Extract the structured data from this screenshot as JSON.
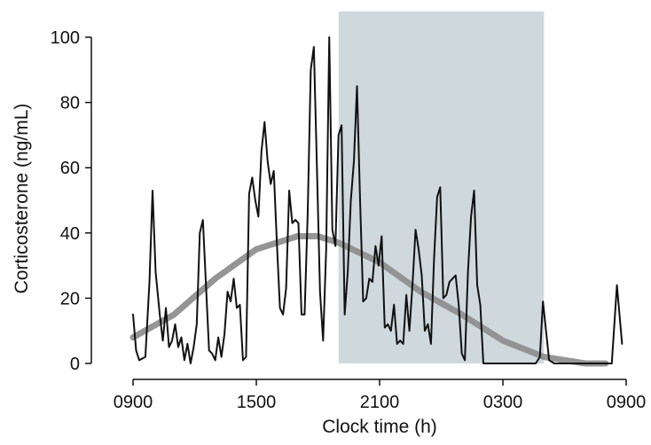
{
  "chart_data": {
    "type": "line",
    "xlabel": "Clock time (h)",
    "ylabel": "Corticosterone (ng/mL)",
    "xlim": [
      0,
      24
    ],
    "ylim": [
      0,
      100
    ],
    "x_ticks": [
      {
        "value": 0,
        "label": "0900"
      },
      {
        "value": 6,
        "label": "1500"
      },
      {
        "value": 12,
        "label": "2100"
      },
      {
        "value": 18,
        "label": "0300"
      },
      {
        "value": 24,
        "label": "0900"
      }
    ],
    "y_ticks": [
      0,
      20,
      40,
      60,
      80,
      100
    ],
    "dark_period": {
      "start": 10,
      "end": 20
    },
    "colors": {
      "dark_period": "#cfd9dd",
      "raw_series": "#111111",
      "fitted_curve": "#8f8f8f",
      "axis": "#111111"
    },
    "series": [
      {
        "points": [
          [
            0.0,
            15
          ],
          [
            0.15,
            4
          ],
          [
            0.3,
            1
          ],
          [
            0.6,
            2
          ],
          [
            0.8,
            25
          ],
          [
            0.95,
            53
          ],
          [
            1.1,
            28
          ],
          [
            1.3,
            15
          ],
          [
            1.45,
            7
          ],
          [
            1.6,
            17
          ],
          [
            1.75,
            5
          ],
          [
            1.9,
            7
          ],
          [
            2.05,
            12
          ],
          [
            2.2,
            5
          ],
          [
            2.35,
            8
          ],
          [
            2.5,
            1
          ],
          [
            2.65,
            6
          ],
          [
            2.8,
            0
          ],
          [
            2.95,
            5
          ],
          [
            3.1,
            12
          ],
          [
            3.25,
            40
          ],
          [
            3.4,
            44
          ],
          [
            3.55,
            24
          ],
          [
            3.7,
            4
          ],
          [
            3.85,
            3
          ],
          [
            4.0,
            1
          ],
          [
            4.15,
            8
          ],
          [
            4.3,
            2
          ],
          [
            4.45,
            9
          ],
          [
            4.6,
            22
          ],
          [
            4.75,
            19
          ],
          [
            4.9,
            26
          ],
          [
            5.05,
            17
          ],
          [
            5.2,
            18
          ],
          [
            5.35,
            1
          ],
          [
            5.5,
            2
          ],
          [
            5.65,
            52
          ],
          [
            5.8,
            57
          ],
          [
            5.95,
            50
          ],
          [
            6.1,
            45
          ],
          [
            6.25,
            65
          ],
          [
            6.4,
            74
          ],
          [
            6.55,
            62
          ],
          [
            6.7,
            55
          ],
          [
            6.85,
            59
          ],
          [
            7.0,
            37
          ],
          [
            7.15,
            17
          ],
          [
            7.3,
            15
          ],
          [
            7.45,
            23
          ],
          [
            7.6,
            53
          ],
          [
            7.75,
            43
          ],
          [
            7.9,
            44
          ],
          [
            8.05,
            43
          ],
          [
            8.2,
            15
          ],
          [
            8.35,
            15
          ],
          [
            8.5,
            46
          ],
          [
            8.65,
            90
          ],
          [
            8.8,
            97
          ],
          [
            8.95,
            60
          ],
          [
            9.1,
            22
          ],
          [
            9.25,
            7
          ],
          [
            9.4,
            35
          ],
          [
            9.55,
            100
          ],
          [
            9.7,
            41
          ],
          [
            9.85,
            36
          ],
          [
            10.0,
            70
          ],
          [
            10.15,
            73
          ],
          [
            10.3,
            15
          ],
          [
            10.45,
            28
          ],
          [
            10.6,
            50
          ],
          [
            10.75,
            62
          ],
          [
            10.9,
            85
          ],
          [
            11.05,
            50
          ],
          [
            11.2,
            19
          ],
          [
            11.35,
            20
          ],
          [
            11.5,
            26
          ],
          [
            11.65,
            25
          ],
          [
            11.8,
            36
          ],
          [
            11.95,
            30
          ],
          [
            12.1,
            39
          ],
          [
            12.25,
            11
          ],
          [
            12.4,
            12
          ],
          [
            12.55,
            10
          ],
          [
            12.7,
            18
          ],
          [
            12.85,
            6
          ],
          [
            13.0,
            7
          ],
          [
            13.15,
            6
          ],
          [
            13.3,
            21
          ],
          [
            13.45,
            10
          ],
          [
            13.6,
            24
          ],
          [
            13.75,
            41
          ],
          [
            13.9,
            35
          ],
          [
            14.05,
            27
          ],
          [
            14.2,
            10
          ],
          [
            14.35,
            12
          ],
          [
            14.5,
            6
          ],
          [
            14.65,
            32
          ],
          [
            14.8,
            51
          ],
          [
            14.95,
            54
          ],
          [
            15.1,
            20
          ],
          [
            15.25,
            21
          ],
          [
            15.4,
            25
          ],
          [
            15.55,
            26
          ],
          [
            15.7,
            27
          ],
          [
            15.85,
            18
          ],
          [
            16.0,
            3
          ],
          [
            16.15,
            1
          ],
          [
            16.3,
            28
          ],
          [
            16.45,
            45
          ],
          [
            16.6,
            53
          ],
          [
            16.75,
            24
          ],
          [
            16.9,
            18
          ],
          [
            17.05,
            0
          ],
          [
            19.6,
            0
          ],
          [
            19.8,
            2
          ],
          [
            19.95,
            19
          ],
          [
            20.1,
            10
          ],
          [
            20.25,
            1
          ],
          [
            20.5,
            0
          ],
          [
            23.1,
            0
          ],
          [
            23.3,
            0
          ],
          [
            23.55,
            24
          ],
          [
            23.8,
            6
          ]
        ]
      },
      {
        "points": [
          [
            0.0,
            8
          ],
          [
            2.0,
            15
          ],
          [
            4.0,
            26
          ],
          [
            6.0,
            35
          ],
          [
            8.0,
            39
          ],
          [
            9.0,
            39
          ],
          [
            10.0,
            37
          ],
          [
            12.0,
            31
          ],
          [
            14.0,
            22
          ],
          [
            16.0,
            15
          ],
          [
            18.0,
            7
          ],
          [
            20.0,
            2
          ],
          [
            22.0,
            0
          ],
          [
            23.0,
            0
          ]
        ]
      }
    ]
  }
}
